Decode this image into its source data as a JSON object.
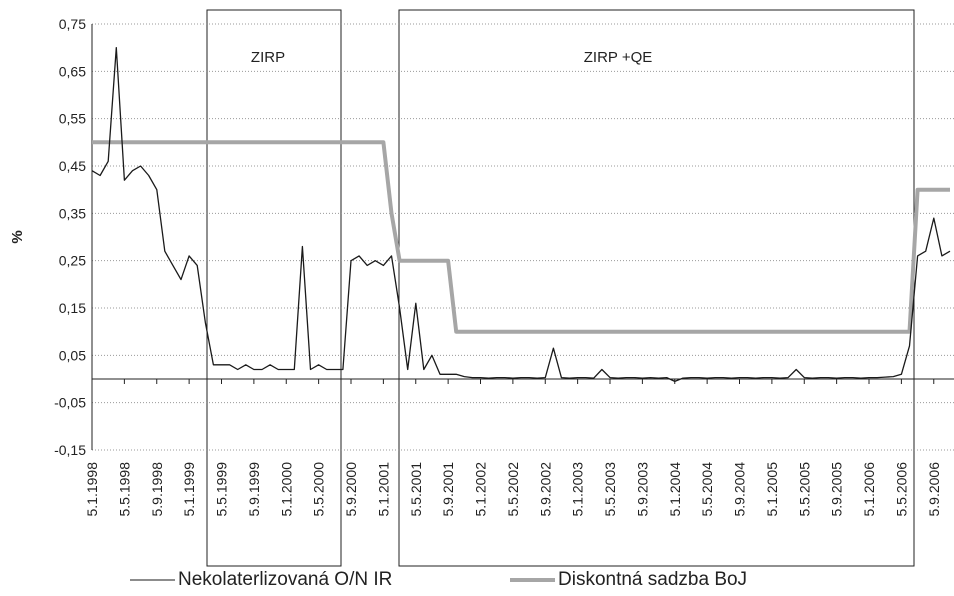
{
  "chart_data": {
    "type": "line",
    "ylabel": "%",
    "annotations": [
      "ZIRP",
      "ZIRP +QE"
    ],
    "ylim": [
      -0.15,
      0.75
    ],
    "yticks": [
      {
        "value": 0.75,
        "label": "0,75"
      },
      {
        "value": 0.65,
        "label": "0,65"
      },
      {
        "value": 0.55,
        "label": "0,55"
      },
      {
        "value": 0.45,
        "label": "0,45"
      },
      {
        "value": 0.35,
        "label": "0,35"
      },
      {
        "value": 0.25,
        "label": "0,25"
      },
      {
        "value": 0.15,
        "label": "0,15"
      },
      {
        "value": 0.05,
        "label": "0,05"
      },
      {
        "value": -0.05,
        "label": "-0,05"
      },
      {
        "value": -0.15,
        "label": "-0,15"
      }
    ],
    "grid": true,
    "categories": [
      "5.1.1998",
      null,
      null,
      null,
      "5.5.1998",
      null,
      null,
      null,
      "5.9.1998",
      null,
      null,
      null,
      "5.1.1999",
      null,
      null,
      null,
      "5.5.1999",
      null,
      null,
      null,
      "5.9.1999",
      null,
      null,
      null,
      "5.1.2000",
      null,
      null,
      null,
      "5.5.2000",
      null,
      null,
      null,
      "5.9.2000",
      null,
      null,
      null,
      "5.1.2001",
      null,
      null,
      null,
      "5.5.2001",
      null,
      null,
      null,
      "5.9.2001",
      null,
      null,
      null,
      "5.1.2002",
      null,
      null,
      null,
      "5.5.2002",
      null,
      null,
      null,
      "5.9.2002",
      null,
      null,
      null,
      "5.1.2003",
      null,
      null,
      null,
      "5.5.2003",
      null,
      null,
      null,
      "5.9.2003",
      null,
      null,
      null,
      "5.1.2004",
      null,
      null,
      null,
      "5.5.2004",
      null,
      null,
      null,
      "5.9.2004",
      null,
      null,
      null,
      "5.1.2005",
      null,
      null,
      null,
      "5.5.2005",
      null,
      null,
      null,
      "5.9.2005",
      null,
      null,
      null,
      "5.1.2006",
      null,
      null,
      null,
      "5.5.2006",
      null,
      null,
      null,
      "5.9.2006",
      null,
      null
    ],
    "series": [
      {
        "name": "Nekolaterlizovaná O/N IR",
        "color": "#1a1a1a",
        "values": [
          0.44,
          0.43,
          0.46,
          0.7,
          0.42,
          0.44,
          0.45,
          0.43,
          0.4,
          0.27,
          0.24,
          0.21,
          0.26,
          0.24,
          0.12,
          0.03,
          0.03,
          0.03,
          0.02,
          0.03,
          0.02,
          0.02,
          0.03,
          0.02,
          0.02,
          0.02,
          0.28,
          0.02,
          0.03,
          0.02,
          0.02,
          0.02,
          0.25,
          0.26,
          0.24,
          0.25,
          0.24,
          0.26,
          0.15,
          0.02,
          0.16,
          0.02,
          0.05,
          0.01,
          0.01,
          0.01,
          0.005,
          0.003,
          0.003,
          0.002,
          0.003,
          0.003,
          0.002,
          0.003,
          0.003,
          0.002,
          0.003,
          0.065,
          0.003,
          0.002,
          0.003,
          0.003,
          0.002,
          0.02,
          0.003,
          0.002,
          0.003,
          0.003,
          0.002,
          0.003,
          0.002,
          0.003,
          -0.005,
          0.002,
          0.003,
          0.003,
          0.002,
          0.003,
          0.003,
          0.002,
          0.003,
          0.003,
          0.002,
          0.003,
          0.003,
          0.002,
          0.003,
          0.02,
          0.003,
          0.002,
          0.003,
          0.003,
          0.002,
          0.003,
          0.003,
          0.002,
          0.003,
          0.003,
          0.004,
          0.005,
          0.01,
          0.07,
          0.26,
          0.27,
          0.34,
          0.26,
          0.27
        ]
      },
      {
        "name": "Diskontná sadzba BoJ",
        "color": "#a6a6a6",
        "values": [
          0.5,
          0.5,
          0.5,
          0.5,
          0.5,
          0.5,
          0.5,
          0.5,
          0.5,
          0.5,
          0.5,
          0.5,
          0.5,
          0.5,
          0.5,
          0.5,
          0.5,
          0.5,
          0.5,
          0.5,
          0.5,
          0.5,
          0.5,
          0.5,
          0.5,
          0.5,
          0.5,
          0.5,
          0.5,
          0.5,
          0.5,
          0.5,
          0.5,
          0.5,
          0.5,
          0.5,
          0.5,
          0.35,
          0.25,
          0.25,
          0.25,
          0.25,
          0.25,
          0.25,
          0.25,
          0.1,
          0.1,
          0.1,
          0.1,
          0.1,
          0.1,
          0.1,
          0.1,
          0.1,
          0.1,
          0.1,
          0.1,
          0.1,
          0.1,
          0.1,
          0.1,
          0.1,
          0.1,
          0.1,
          0.1,
          0.1,
          0.1,
          0.1,
          0.1,
          0.1,
          0.1,
          0.1,
          0.1,
          0.1,
          0.1,
          0.1,
          0.1,
          0.1,
          0.1,
          0.1,
          0.1,
          0.1,
          0.1,
          0.1,
          0.1,
          0.1,
          0.1,
          0.1,
          0.1,
          0.1,
          0.1,
          0.1,
          0.1,
          0.1,
          0.1,
          0.1,
          0.1,
          0.1,
          0.1,
          0.1,
          0.1,
          0.1,
          0.4,
          0.4,
          0.4,
          0.4,
          0.4
        ]
      }
    ]
  }
}
